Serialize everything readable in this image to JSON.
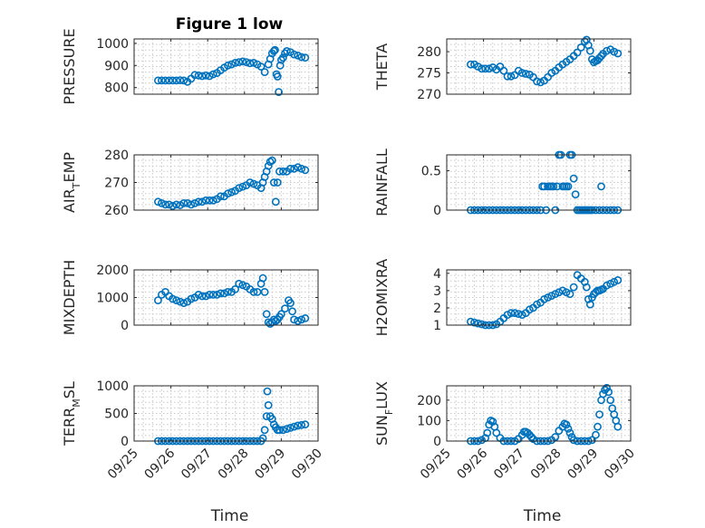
{
  "figure": {
    "title": "Figure 1 low",
    "marker_color": "#0072BD"
  },
  "chart_data": [
    {
      "type": "scatter",
      "ylabel_parts": [
        "PRESSURE"
      ],
      "xlabel": "",
      "grid": true,
      "xlim": [
        "09/25",
        "09/30"
      ],
      "ylim": [
        770,
        1020
      ],
      "yticks": [
        800,
        900,
        1000
      ],
      "xticks": [
        "09/25",
        "09/26",
        "09/27",
        "09/28",
        "09/29",
        "09/30"
      ],
      "x": [
        0.65,
        0.75,
        0.85,
        0.95,
        1.05,
        1.15,
        1.25,
        1.35,
        1.45,
        1.55,
        1.65,
        1.75,
        1.85,
        1.95,
        2.05,
        2.15,
        2.25,
        2.35,
        2.45,
        2.55,
        2.65,
        2.75,
        2.85,
        2.95,
        3.05,
        3.15,
        3.25,
        3.35,
        3.45,
        3.55,
        3.65,
        3.7,
        3.75,
        3.8,
        3.83,
        3.87,
        3.9,
        3.93,
        3.97,
        4.0,
        4.05,
        4.1,
        4.15,
        4.25,
        4.35,
        4.45,
        4.55,
        4.65
      ],
      "y": [
        832,
        832,
        832,
        832,
        832,
        832,
        833,
        832,
        826,
        840,
        857,
        855,
        852,
        855,
        852,
        860,
        866,
        878,
        890,
        900,
        905,
        912,
        915,
        918,
        915,
        910,
        912,
        905,
        895,
        870,
        905,
        930,
        955,
        965,
        970,
        860,
        850,
        780,
        900,
        925,
        935,
        955,
        965,
        960,
        950,
        945,
        938,
        935
      ]
    },
    {
      "type": "scatter",
      "ylabel_parts": [
        "THETA"
      ],
      "xlabel": "",
      "grid": true,
      "xlim": [
        "09/25",
        "09/30"
      ],
      "ylim": [
        270,
        283
      ],
      "yticks": [
        270,
        275,
        280
      ],
      "xticks": [
        "09/25",
        "09/26",
        "09/27",
        "09/28",
        "09/29",
        "09/30"
      ],
      "x": [
        0.65,
        0.75,
        0.85,
        0.95,
        1.05,
        1.15,
        1.25,
        1.35,
        1.45,
        1.55,
        1.65,
        1.75,
        1.85,
        1.95,
        2.05,
        2.15,
        2.25,
        2.35,
        2.45,
        2.55,
        2.65,
        2.75,
        2.85,
        2.95,
        3.05,
        3.15,
        3.25,
        3.35,
        3.45,
        3.55,
        3.65,
        3.75,
        3.8,
        3.85,
        3.9,
        3.95,
        4.0,
        4.05,
        4.1,
        4.15,
        4.2,
        4.25,
        4.35,
        4.45,
        4.55,
        4.65
      ],
      "y": [
        277,
        277,
        276.5,
        276,
        276,
        276,
        276.3,
        275.8,
        276.5,
        275.5,
        274.2,
        274.2,
        274.5,
        275.5,
        275,
        274.8,
        274.6,
        274,
        273,
        272.8,
        273.2,
        274,
        275,
        275.5,
        276.3,
        277,
        277.6,
        278.2,
        279,
        279.8,
        281,
        282.4,
        282.8,
        281.5,
        280.2,
        278.2,
        277.5,
        277.8,
        278,
        278.5,
        279,
        279.5,
        280.2,
        280.5,
        280,
        279.6
      ]
    },
    {
      "type": "scatter",
      "ylabel_parts": [
        "AIR",
        "T",
        "EMP"
      ],
      "xlabel": "",
      "grid": true,
      "xlim": [
        "09/25",
        "09/30"
      ],
      "ylim": [
        260,
        280
      ],
      "yticks": [
        260,
        270,
        280
      ],
      "xticks": [
        "09/25",
        "09/26",
        "09/27",
        "09/28",
        "09/29",
        "09/30"
      ],
      "x": [
        0.65,
        0.75,
        0.85,
        0.95,
        1.05,
        1.15,
        1.25,
        1.35,
        1.45,
        1.55,
        1.65,
        1.75,
        1.85,
        1.95,
        2.05,
        2.15,
        2.25,
        2.35,
        2.45,
        2.55,
        2.65,
        2.75,
        2.85,
        2.95,
        3.05,
        3.15,
        3.25,
        3.35,
        3.45,
        3.5,
        3.55,
        3.6,
        3.65,
        3.7,
        3.75,
        3.8,
        3.85,
        3.9,
        3.95,
        4.05,
        4.15,
        4.25,
        4.35,
        4.45,
        4.55,
        4.65
      ],
      "y": [
        263,
        262.5,
        262,
        262,
        261.5,
        262,
        261.8,
        262.5,
        262.5,
        262,
        262.5,
        263,
        263,
        263.5,
        263.5,
        263.5,
        264,
        265,
        265,
        266,
        266.5,
        267,
        268,
        268.5,
        269,
        270,
        269.5,
        269,
        268,
        270,
        272,
        274,
        276,
        277.5,
        278,
        270,
        263,
        270,
        274,
        274,
        274,
        275,
        275,
        275.5,
        275,
        274.5
      ]
    },
    {
      "type": "scatter",
      "ylabel_parts": [
        "RAINFALL"
      ],
      "xlabel": "",
      "grid": true,
      "xlim": [
        "09/25",
        "09/30"
      ],
      "ylim": [
        0,
        0.7
      ],
      "yticks": [
        0,
        0.5
      ],
      "xticks": [
        "09/25",
        "09/26",
        "09/27",
        "09/28",
        "09/29",
        "09/30"
      ],
      "x": [
        0.65,
        0.75,
        0.85,
        0.95,
        1.05,
        1.15,
        1.25,
        1.35,
        1.45,
        1.55,
        1.65,
        1.75,
        1.85,
        1.95,
        2.05,
        2.15,
        2.25,
        2.35,
        2.45,
        2.55,
        2.6,
        2.65,
        2.7,
        2.75,
        2.8,
        2.85,
        2.9,
        2.95,
        3.0,
        3.05,
        3.1,
        3.15,
        3.2,
        3.25,
        3.3,
        3.35,
        3.4,
        3.45,
        3.5,
        3.55,
        3.6,
        3.65,
        3.7,
        3.75,
        3.8,
        3.85,
        3.9,
        3.95,
        4.05,
        4.15,
        4.25,
        4.35,
        4.45,
        4.55,
        4.65,
        4.2
      ],
      "y": [
        0,
        0,
        0,
        0,
        0,
        0,
        0,
        0,
        0,
        0,
        0,
        0,
        0,
        0,
        0,
        0,
        0,
        0,
        0,
        0,
        0.3,
        0.3,
        0,
        0.3,
        0.3,
        0.3,
        0.3,
        0,
        0.3,
        0.7,
        0.7,
        0.3,
        0.3,
        0.3,
        0.3,
        0.7,
        0.7,
        0.4,
        0.2,
        0,
        0,
        0,
        0,
        0,
        0,
        0,
        0,
        0,
        0,
        0,
        0,
        0,
        0,
        0,
        0,
        0.3
      ]
    },
    {
      "type": "scatter",
      "ylabel_parts": [
        "MIXDEPTH"
      ],
      "xlabel": "",
      "grid": true,
      "xlim": [
        "09/25",
        "09/30"
      ],
      "ylim": [
        0,
        2000
      ],
      "yticks": [
        0,
        1000,
        2000
      ],
      "xticks": [
        "09/25",
        "09/26",
        "09/27",
        "09/28",
        "09/29",
        "09/30"
      ],
      "x": [
        0.65,
        0.75,
        0.85,
        0.95,
        1.05,
        1.15,
        1.25,
        1.35,
        1.45,
        1.55,
        1.65,
        1.75,
        1.85,
        1.95,
        2.05,
        2.15,
        2.25,
        2.35,
        2.45,
        2.55,
        2.65,
        2.75,
        2.85,
        2.95,
        3.05,
        3.15,
        3.25,
        3.35,
        3.45,
        3.5,
        3.55,
        3.6,
        3.65,
        3.7,
        3.75,
        3.8,
        3.85,
        3.9,
        3.95,
        4.0,
        4.1,
        4.2,
        4.25,
        4.3,
        4.35,
        4.45,
        4.55,
        4.65
      ],
      "y": [
        900,
        1100,
        1200,
        1050,
        950,
        900,
        850,
        800,
        850,
        950,
        1000,
        1100,
        1050,
        1050,
        1100,
        1100,
        1100,
        1150,
        1150,
        1200,
        1200,
        1300,
        1500,
        1450,
        1400,
        1300,
        1200,
        1200,
        1500,
        1700,
        1200,
        400,
        100,
        50,
        100,
        200,
        150,
        200,
        300,
        400,
        600,
        900,
        800,
        500,
        200,
        150,
        200,
        250
      ]
    },
    {
      "type": "scatter",
      "ylabel_parts": [
        "H2OMIXRA"
      ],
      "xlabel": "",
      "grid": true,
      "xlim": [
        "09/25",
        "09/30"
      ],
      "ylim": [
        1,
        4.2
      ],
      "yticks": [
        1,
        2,
        3,
        4
      ],
      "xticks": [
        "09/25",
        "09/26",
        "09/27",
        "09/28",
        "09/29",
        "09/30"
      ],
      "x": [
        0.65,
        0.75,
        0.85,
        0.95,
        1.05,
        1.15,
        1.25,
        1.35,
        1.45,
        1.55,
        1.65,
        1.75,
        1.85,
        1.95,
        2.05,
        2.15,
        2.25,
        2.35,
        2.45,
        2.55,
        2.65,
        2.75,
        2.85,
        2.95,
        3.05,
        3.15,
        3.25,
        3.35,
        3.45,
        3.55,
        3.65,
        3.75,
        3.8,
        3.85,
        3.9,
        3.95,
        4.0,
        4.05,
        4.1,
        4.15,
        4.2,
        4.25,
        4.35,
        4.45,
        4.55,
        4.65
      ],
      "y": [
        1.2,
        1.15,
        1.1,
        1.05,
        1.0,
        1.0,
        1.0,
        1.05,
        1.2,
        1.4,
        1.6,
        1.7,
        1.7,
        1.65,
        1.6,
        1.7,
        1.9,
        2.0,
        2.2,
        2.3,
        2.5,
        2.6,
        2.7,
        2.8,
        2.9,
        3.0,
        2.9,
        2.8,
        3.2,
        3.9,
        3.7,
        3.5,
        3.2,
        2.5,
        2.2,
        2.6,
        2.8,
        2.9,
        3.0,
        3.0,
        3.05,
        3.1,
        3.3,
        3.4,
        3.5,
        3.6
      ]
    },
    {
      "type": "scatter",
      "ylabel_parts": [
        "TERR",
        "M",
        "SL"
      ],
      "xlabel": "Time",
      "grid": true,
      "xlim": [
        "09/25",
        "09/30"
      ],
      "ylim": [
        0,
        1000
      ],
      "yticks": [
        0,
        500,
        1000
      ],
      "xticks": [
        "09/25",
        "09/26",
        "09/27",
        "09/28",
        "09/29",
        "09/30"
      ],
      "x": [
        0.65,
        0.75,
        0.85,
        0.95,
        1.05,
        1.15,
        1.25,
        1.35,
        1.45,
        1.55,
        1.65,
        1.75,
        1.85,
        1.95,
        2.05,
        2.15,
        2.25,
        2.35,
        2.45,
        2.55,
        2.65,
        2.75,
        2.85,
        2.95,
        3.05,
        3.15,
        3.25,
        3.35,
        3.45,
        3.5,
        3.55,
        3.6,
        3.62,
        3.65,
        3.7,
        3.75,
        3.8,
        3.85,
        3.9,
        3.95,
        4.05,
        4.15,
        4.25,
        4.35,
        4.45,
        4.55,
        4.65
      ],
      "y": [
        0,
        0,
        0,
        0,
        0,
        0,
        0,
        0,
        0,
        0,
        0,
        0,
        0,
        0,
        0,
        0,
        0,
        0,
        0,
        0,
        0,
        0,
        0,
        0,
        0,
        0,
        0,
        0,
        0,
        50,
        200,
        450,
        900,
        650,
        450,
        400,
        300,
        250,
        200,
        200,
        200,
        220,
        240,
        260,
        280,
        290,
        300
      ]
    },
    {
      "type": "scatter",
      "ylabel_parts": [
        "SUN",
        "F",
        "LUX"
      ],
      "xlabel": "Time",
      "grid": true,
      "xlim": [
        "09/25",
        "09/30"
      ],
      "ylim": [
        0,
        270
      ],
      "yticks": [
        0,
        100,
        200
      ],
      "xticks": [
        "09/25",
        "09/26",
        "09/27",
        "09/28",
        "09/29",
        "09/30"
      ],
      "x": [
        0.65,
        0.75,
        0.85,
        0.95,
        1.05,
        1.1,
        1.15,
        1.2,
        1.25,
        1.3,
        1.35,
        1.45,
        1.55,
        1.65,
        1.75,
        1.85,
        1.95,
        2.05,
        2.1,
        2.15,
        2.2,
        2.25,
        2.3,
        2.35,
        2.45,
        2.55,
        2.65,
        2.75,
        2.85,
        2.95,
        3.05,
        3.15,
        3.2,
        3.25,
        3.3,
        3.35,
        3.4,
        3.45,
        3.55,
        3.65,
        3.75,
        3.85,
        3.95,
        4.05,
        4.1,
        4.15,
        4.2,
        4.25,
        4.3,
        4.35,
        4.4,
        4.45,
        4.5,
        4.55,
        4.6,
        4.65
      ],
      "y": [
        0,
        0,
        0,
        5,
        15,
        40,
        80,
        100,
        95,
        70,
        40,
        15,
        0,
        0,
        0,
        0,
        10,
        30,
        45,
        45,
        40,
        30,
        20,
        10,
        0,
        0,
        0,
        0,
        5,
        20,
        50,
        70,
        85,
        80,
        60,
        40,
        20,
        5,
        0,
        0,
        0,
        0,
        5,
        30,
        70,
        130,
        200,
        230,
        250,
        260,
        240,
        200,
        160,
        130,
        100,
        70
      ]
    }
  ]
}
